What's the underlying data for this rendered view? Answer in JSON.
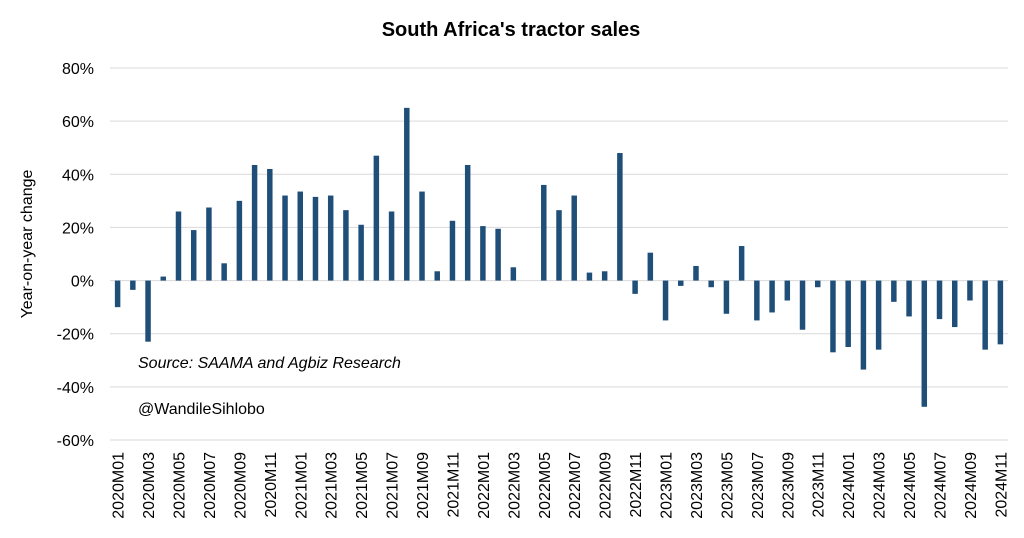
{
  "chart_data": {
    "type": "bar",
    "title": "South Africa's tractor sales",
    "ylabel": "Year-on-year change",
    "xlabel": "",
    "ylim": [
      -60,
      80
    ],
    "yticks": [
      80,
      60,
      40,
      20,
      0,
      -20,
      -40,
      -60
    ],
    "ytick_labels": [
      "80%",
      "60%",
      "40%",
      "20%",
      "0%",
      "-20%",
      "-40%",
      "-60%"
    ],
    "grid": true,
    "bar_color": "#1f4e79",
    "annotations": [
      "Source: SAAMA and Agbiz Research",
      "@WandileSihlobo"
    ],
    "categories": [
      "2020M01",
      "2020M02",
      "2020M03",
      "2020M04",
      "2020M05",
      "2020M06",
      "2020M07",
      "2020M08",
      "2020M09",
      "2020M10",
      "2020M11",
      "2020M12",
      "2021M01",
      "2021M02",
      "2021M03",
      "2021M04",
      "2021M05",
      "2021M06",
      "2021M07",
      "2021M08",
      "2021M09",
      "2021M10",
      "2021M11",
      "2021M12",
      "2022M01",
      "2022M02",
      "2022M03",
      "2022M04",
      "2022M05",
      "2022M06",
      "2022M07",
      "2022M08",
      "2022M09",
      "2022M10",
      "2022M11",
      "2022M12",
      "2023M01",
      "2023M02",
      "2023M03",
      "2023M04",
      "2023M05",
      "2023M06",
      "2023M07",
      "2023M08",
      "2023M09",
      "2023M10",
      "2023M11",
      "2023M12",
      "2024M01",
      "2024M02",
      "2024M03",
      "2024M04",
      "2024M05",
      "2024M06",
      "2024M07",
      "2024M08",
      "2024M09",
      "2024M10",
      "2024M11"
    ],
    "shown_tick_labels": [
      "2020M01",
      "2020M03",
      "2020M05",
      "2020M07",
      "2020M09",
      "2020M11",
      "2021M01",
      "2021M03",
      "2021M05",
      "2021M07",
      "2021M09",
      "2021M11",
      "2022M01",
      "2022M03",
      "2022M05",
      "2022M07",
      "2022M09",
      "2022M11",
      "2023M01",
      "2023M03",
      "2023M05",
      "2023M07",
      "2023M09",
      "2023M11",
      "2024M01",
      "2024M03",
      "2024M05",
      "2024M07",
      "2024M09",
      "2024M11"
    ],
    "values": [
      -10,
      -3.5,
      -23,
      1.5,
      26,
      19,
      27.5,
      6.5,
      30,
      43.5,
      42,
      32,
      33.5,
      31.5,
      32,
      26.5,
      21,
      47,
      26,
      65,
      33.5,
      3.5,
      22.5,
      43.5,
      20.5,
      19.5,
      5,
      0,
      36,
      26.5,
      32,
      3,
      3.5,
      48,
      -5,
      10.5,
      -15,
      -2,
      5.5,
      -2.5,
      -12.5,
      13,
      -15,
      -12,
      -7.5,
      -18.5,
      -2.5,
      -27,
      -25,
      -33.5,
      -26,
      -8,
      -13.5,
      -47.5,
      -14.5,
      -17.5,
      -7.5,
      -26,
      -24
    ]
  }
}
